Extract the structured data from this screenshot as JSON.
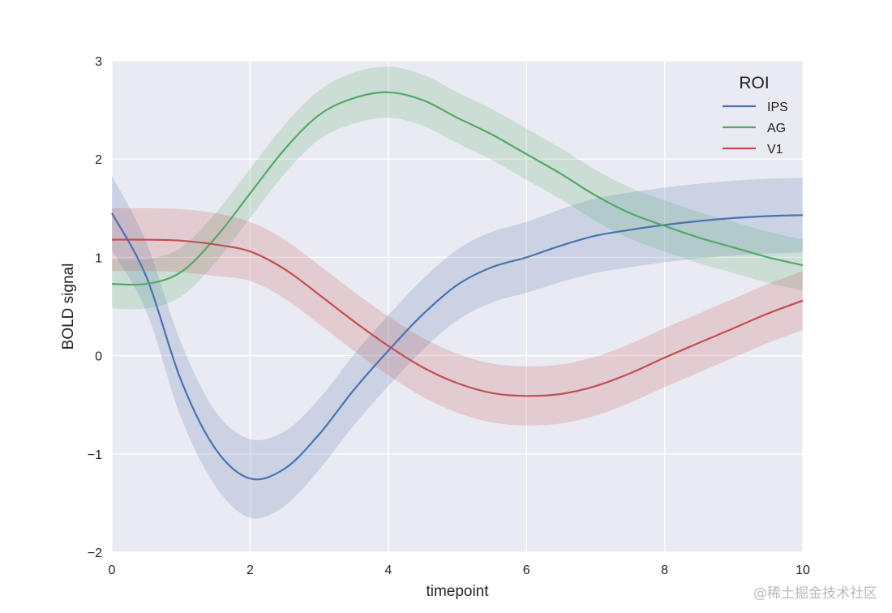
{
  "chart_data": {
    "type": "line",
    "title": "",
    "xlabel": "timepoint",
    "ylabel": "BOLD signal",
    "xlim": [
      0,
      10
    ],
    "ylim": [
      -2,
      3
    ],
    "xticks": [
      0,
      2,
      4,
      6,
      8,
      10
    ],
    "yticks": [
      -2,
      -1,
      0,
      1,
      2,
      3
    ],
    "xtick_labels": [
      "0",
      "2",
      "4",
      "6",
      "8",
      "10"
    ],
    "ytick_labels": [
      "−2",
      "−1",
      "0",
      "1",
      "2",
      "3"
    ],
    "grid": true,
    "legend": {
      "title": "ROI",
      "position": "top-right"
    },
    "x": [
      0,
      0.5,
      1,
      1.5,
      2,
      2.5,
      3,
      3.5,
      4,
      4.5,
      5,
      5.5,
      6,
      6.5,
      7,
      7.5,
      8,
      8.5,
      9,
      9.5,
      10
    ],
    "series": [
      {
        "name": "IPS",
        "color": "#4c72b0",
        "values": [
          1.45,
          0.8,
          -0.25,
          -0.95,
          -1.25,
          -1.15,
          -0.8,
          -0.35,
          0.05,
          0.42,
          0.72,
          0.9,
          1.0,
          1.12,
          1.22,
          1.28,
          1.33,
          1.37,
          1.4,
          1.42,
          1.43
        ],
        "band": [
          0.38,
          0.35,
          0.38,
          0.38,
          0.4,
          0.38,
          0.36,
          0.36,
          0.36,
          0.36,
          0.36,
          0.36,
          0.36,
          0.37,
          0.38,
          0.38,
          0.38,
          0.38,
          0.38,
          0.38,
          0.38
        ]
      },
      {
        "name": "AG",
        "color": "#55a868",
        "values": [
          0.73,
          0.73,
          0.85,
          1.2,
          1.65,
          2.1,
          2.45,
          2.62,
          2.68,
          2.6,
          2.42,
          2.25,
          2.05,
          1.85,
          1.63,
          1.45,
          1.32,
          1.2,
          1.1,
          1.0,
          0.92
        ],
        "band": [
          0.25,
          0.25,
          0.25,
          0.25,
          0.25,
          0.25,
          0.25,
          0.26,
          0.26,
          0.26,
          0.26,
          0.26,
          0.26,
          0.26,
          0.26,
          0.26,
          0.26,
          0.26,
          0.26,
          0.26,
          0.26
        ]
      },
      {
        "name": "V1",
        "color": "#c44e52",
        "values": [
          1.18,
          1.18,
          1.17,
          1.13,
          1.06,
          0.88,
          0.62,
          0.35,
          0.1,
          -0.12,
          -0.28,
          -0.38,
          -0.41,
          -0.39,
          -0.31,
          -0.18,
          -0.02,
          0.13,
          0.28,
          0.43,
          0.56
        ],
        "band": [
          0.32,
          0.32,
          0.32,
          0.32,
          0.3,
          0.3,
          0.3,
          0.3,
          0.3,
          0.3,
          0.3,
          0.3,
          0.3,
          0.3,
          0.3,
          0.3,
          0.3,
          0.3,
          0.3,
          0.3,
          0.3
        ]
      }
    ]
  },
  "watermark": "@稀土掘金技术社区"
}
